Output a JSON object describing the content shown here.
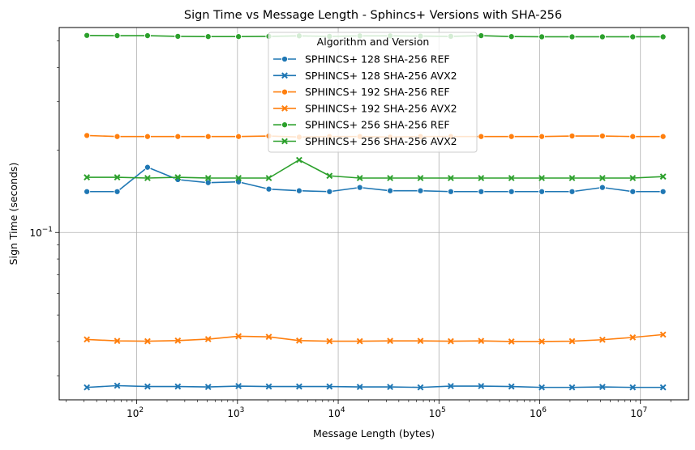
{
  "chart_data": {
    "type": "line",
    "title": "Sign Time vs Message Length - Sphincs+ Versions with SHA-256",
    "xlabel": "Message Length (bytes)",
    "ylabel": "Sign Time (seconds)",
    "xscale": "log",
    "yscale": "log",
    "xlim": [
      17,
      30000000
    ],
    "ylim": [
      0.0245,
      0.56
    ],
    "grid": true,
    "legend": {
      "title": "Algorithm and Version",
      "placement": "upper center"
    },
    "x_ticks": [
      {
        "value": 100,
        "base": "10",
        "exp": "2"
      },
      {
        "value": 1000,
        "base": "10",
        "exp": "3"
      },
      {
        "value": 10000,
        "base": "10",
        "exp": "4"
      },
      {
        "value": 100000,
        "base": "10",
        "exp": "5"
      },
      {
        "value": 1000000,
        "base": "10",
        "exp": "6"
      },
      {
        "value": 10000000,
        "base": "10",
        "exp": "7"
      }
    ],
    "y_ticks": [
      {
        "value": 0.1,
        "base": "10",
        "exp": "−1"
      }
    ],
    "x": [
      32,
      64,
      128,
      256,
      512,
      1024,
      2048,
      4096,
      8192,
      16384,
      32768,
      65536,
      131072,
      262144,
      524288,
      1048576,
      2097152,
      4194304,
      8388608,
      16777216
    ],
    "series": [
      {
        "name": "SPHINCS+ 128 SHA-256 REF",
        "color": "#1f77b4",
        "marker": "circle",
        "values": [
          0.141,
          0.141,
          0.173,
          0.156,
          0.152,
          0.153,
          0.144,
          0.142,
          0.141,
          0.146,
          0.142,
          0.142,
          0.141,
          0.141,
          0.141,
          0.141,
          0.141,
          0.146,
          0.141,
          0.141
        ]
      },
      {
        "name": "SPHINCS+ 128 SHA-256 AVX2",
        "color": "#1f77b4",
        "marker": "x",
        "values": [
          0.0272,
          0.0276,
          0.0274,
          0.0274,
          0.0273,
          0.0275,
          0.0274,
          0.0274,
          0.0274,
          0.0273,
          0.0273,
          0.0272,
          0.0275,
          0.0275,
          0.0274,
          0.0272,
          0.0272,
          0.0273,
          0.0272,
          0.0272
        ]
      },
      {
        "name": "SPHINCS+ 192 SHA-256 REF",
        "color": "#ff7f0e",
        "marker": "circle",
        "values": [
          0.226,
          0.224,
          0.224,
          0.224,
          0.224,
          0.224,
          0.225,
          0.223,
          0.224,
          0.224,
          0.223,
          0.224,
          0.224,
          0.224,
          0.224,
          0.224,
          0.225,
          0.225,
          0.224,
          0.224
        ]
      },
      {
        "name": "SPHINCS+ 192 SHA-256 AVX2",
        "color": "#ff7f0e",
        "marker": "x",
        "values": [
          0.0407,
          0.0402,
          0.0401,
          0.0403,
          0.0408,
          0.0418,
          0.0416,
          0.0403,
          0.0401,
          0.0401,
          0.0402,
          0.0402,
          0.0401,
          0.0402,
          0.04,
          0.04,
          0.0401,
          0.0406,
          0.0414,
          0.0424
        ]
      },
      {
        "name": "SPHINCS+ 256 SHA-256 REF",
        "color": "#2ca02c",
        "marker": "circle",
        "values": [
          0.524,
          0.523,
          0.523,
          0.52,
          0.519,
          0.519,
          0.52,
          0.522,
          0.52,
          0.522,
          0.522,
          0.521,
          0.52,
          0.523,
          0.519,
          0.518,
          0.518,
          0.518,
          0.518,
          0.518
        ]
      },
      {
        "name": "SPHINCS+ 256 SHA-256 AVX2",
        "color": "#2ca02c",
        "marker": "x",
        "values": [
          0.159,
          0.159,
          0.158,
          0.159,
          0.158,
          0.158,
          0.158,
          0.184,
          0.161,
          0.158,
          0.158,
          0.158,
          0.158,
          0.158,
          0.158,
          0.158,
          0.158,
          0.158,
          0.158,
          0.16
        ]
      }
    ]
  }
}
